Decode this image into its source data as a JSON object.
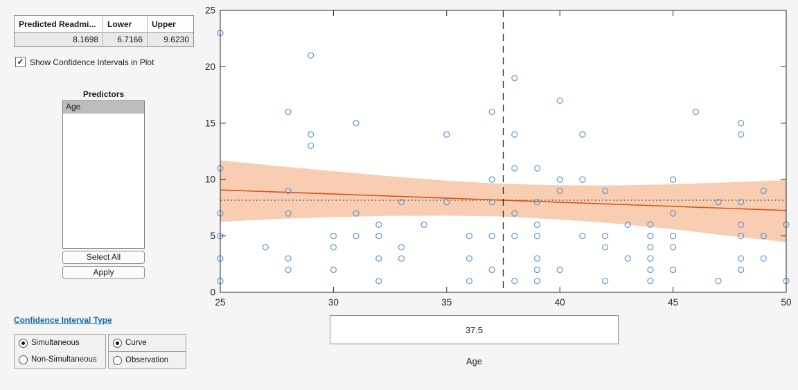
{
  "window": {
    "bg": "#f5f5f5"
  },
  "results_table": {
    "columns": [
      "Predicted Readmi...",
      "Lower",
      "Upper"
    ],
    "values": [
      "8.1698",
      "6.7166",
      "9.6230"
    ]
  },
  "show_ci_checkbox": {
    "label": "Show Confidence Intervals in Plot",
    "checked": true
  },
  "predictors": {
    "title": "Predictors",
    "items": [
      "Age"
    ],
    "selected_index": 0,
    "select_all_label": "Select All",
    "apply_label": "Apply"
  },
  "ci_type": {
    "link_label": "Confidence Interval Type",
    "link_color": "#0e67ac",
    "groups": [
      {
        "options": [
          {
            "label": "Simultaneous",
            "selected": true
          },
          {
            "label": "Non-Simultaneous",
            "selected": false
          }
        ]
      },
      {
        "options": [
          {
            "label": "Curve",
            "selected": true
          },
          {
            "label": "Observation",
            "selected": false
          }
        ]
      }
    ]
  },
  "slice_control": {
    "value": "37.5",
    "label": "Age"
  },
  "chart_data": {
    "type": "scatter",
    "title": "",
    "xlabel": "Age",
    "ylabel": "",
    "xlim": [
      25,
      50
    ],
    "ylim": [
      0,
      25
    ],
    "xticks": [
      25,
      30,
      35,
      40,
      45,
      50
    ],
    "yticks": [
      0,
      5,
      10,
      15,
      20,
      25
    ],
    "grid": false,
    "points": [
      [
        25,
        23
      ],
      [
        25,
        11
      ],
      [
        25,
        7
      ],
      [
        25,
        5
      ],
      [
        25,
        3
      ],
      [
        25,
        1
      ],
      [
        27,
        4
      ],
      [
        28,
        16
      ],
      [
        28,
        9
      ],
      [
        28,
        7
      ],
      [
        28,
        3
      ],
      [
        28,
        2
      ],
      [
        29,
        21
      ],
      [
        29,
        14
      ],
      [
        29,
        13
      ],
      [
        30,
        5
      ],
      [
        30,
        4
      ],
      [
        30,
        2
      ],
      [
        31,
        15
      ],
      [
        31,
        7
      ],
      [
        31,
        5
      ],
      [
        32,
        6
      ],
      [
        32,
        5
      ],
      [
        32,
        3
      ],
      [
        32,
        1
      ],
      [
        33,
        8
      ],
      [
        33,
        4
      ],
      [
        33,
        3
      ],
      [
        34,
        6
      ],
      [
        35,
        14
      ],
      [
        35,
        8
      ],
      [
        36,
        5
      ],
      [
        36,
        3
      ],
      [
        36,
        1
      ],
      [
        37,
        16
      ],
      [
        37,
        10
      ],
      [
        37,
        8
      ],
      [
        37,
        5
      ],
      [
        37,
        2
      ],
      [
        38,
        19
      ],
      [
        38,
        14
      ],
      [
        38,
        11
      ],
      [
        38,
        7
      ],
      [
        38,
        5
      ],
      [
        38,
        1
      ],
      [
        39,
        11
      ],
      [
        39,
        8
      ],
      [
        39,
        6
      ],
      [
        39,
        5
      ],
      [
        39,
        3
      ],
      [
        39,
        2
      ],
      [
        39,
        1
      ],
      [
        40,
        17
      ],
      [
        40,
        10
      ],
      [
        40,
        9
      ],
      [
        40,
        2
      ],
      [
        41,
        14
      ],
      [
        41,
        10
      ],
      [
        41,
        5
      ],
      [
        42,
        9
      ],
      [
        42,
        5
      ],
      [
        42,
        4
      ],
      [
        42,
        1
      ],
      [
        43,
        6
      ],
      [
        43,
        3
      ],
      [
        44,
        6
      ],
      [
        44,
        5
      ],
      [
        44,
        4
      ],
      [
        44,
        3
      ],
      [
        44,
        2
      ],
      [
        44,
        1
      ],
      [
        45,
        10
      ],
      [
        45,
        7
      ],
      [
        45,
        5
      ],
      [
        45,
        4
      ],
      [
        45,
        2
      ],
      [
        46,
        16
      ],
      [
        47,
        8
      ],
      [
        47,
        1
      ],
      [
        48,
        15
      ],
      [
        48,
        14
      ],
      [
        48,
        8
      ],
      [
        48,
        6
      ],
      [
        48,
        5
      ],
      [
        48,
        3
      ],
      [
        48,
        2
      ],
      [
        49,
        9
      ],
      [
        49,
        5
      ],
      [
        49,
        3
      ],
      [
        50,
        6
      ],
      [
        50,
        1
      ]
    ],
    "fit_line": {
      "x": [
        25,
        50
      ],
      "y": [
        9.08,
        7.26
      ]
    },
    "confidence_band": {
      "x": [
        25,
        27.5,
        30,
        32.5,
        35,
        37.5,
        40,
        42.5,
        45,
        47.5,
        50
      ],
      "upper": [
        11.7,
        11.2,
        10.75,
        10.3,
        9.9,
        9.62,
        9.5,
        9.48,
        9.58,
        9.75,
        9.95
      ],
      "lower": [
        6.25,
        6.5,
        6.67,
        6.78,
        6.8,
        6.72,
        6.45,
        6.1,
        5.6,
        5.0,
        4.45
      ]
    },
    "slice_line_x": 37.5,
    "predicted_line_y": 8.1698,
    "legend": null,
    "colors": {
      "marker": "#699bd0",
      "fit_line": "#d95319",
      "band": "#f8cdb2",
      "slice_dashed": "#1a1a1a",
      "predicted_dotted": "#5f5f5f",
      "frame": "#262626",
      "plot_bg": "#ffffff"
    }
  }
}
